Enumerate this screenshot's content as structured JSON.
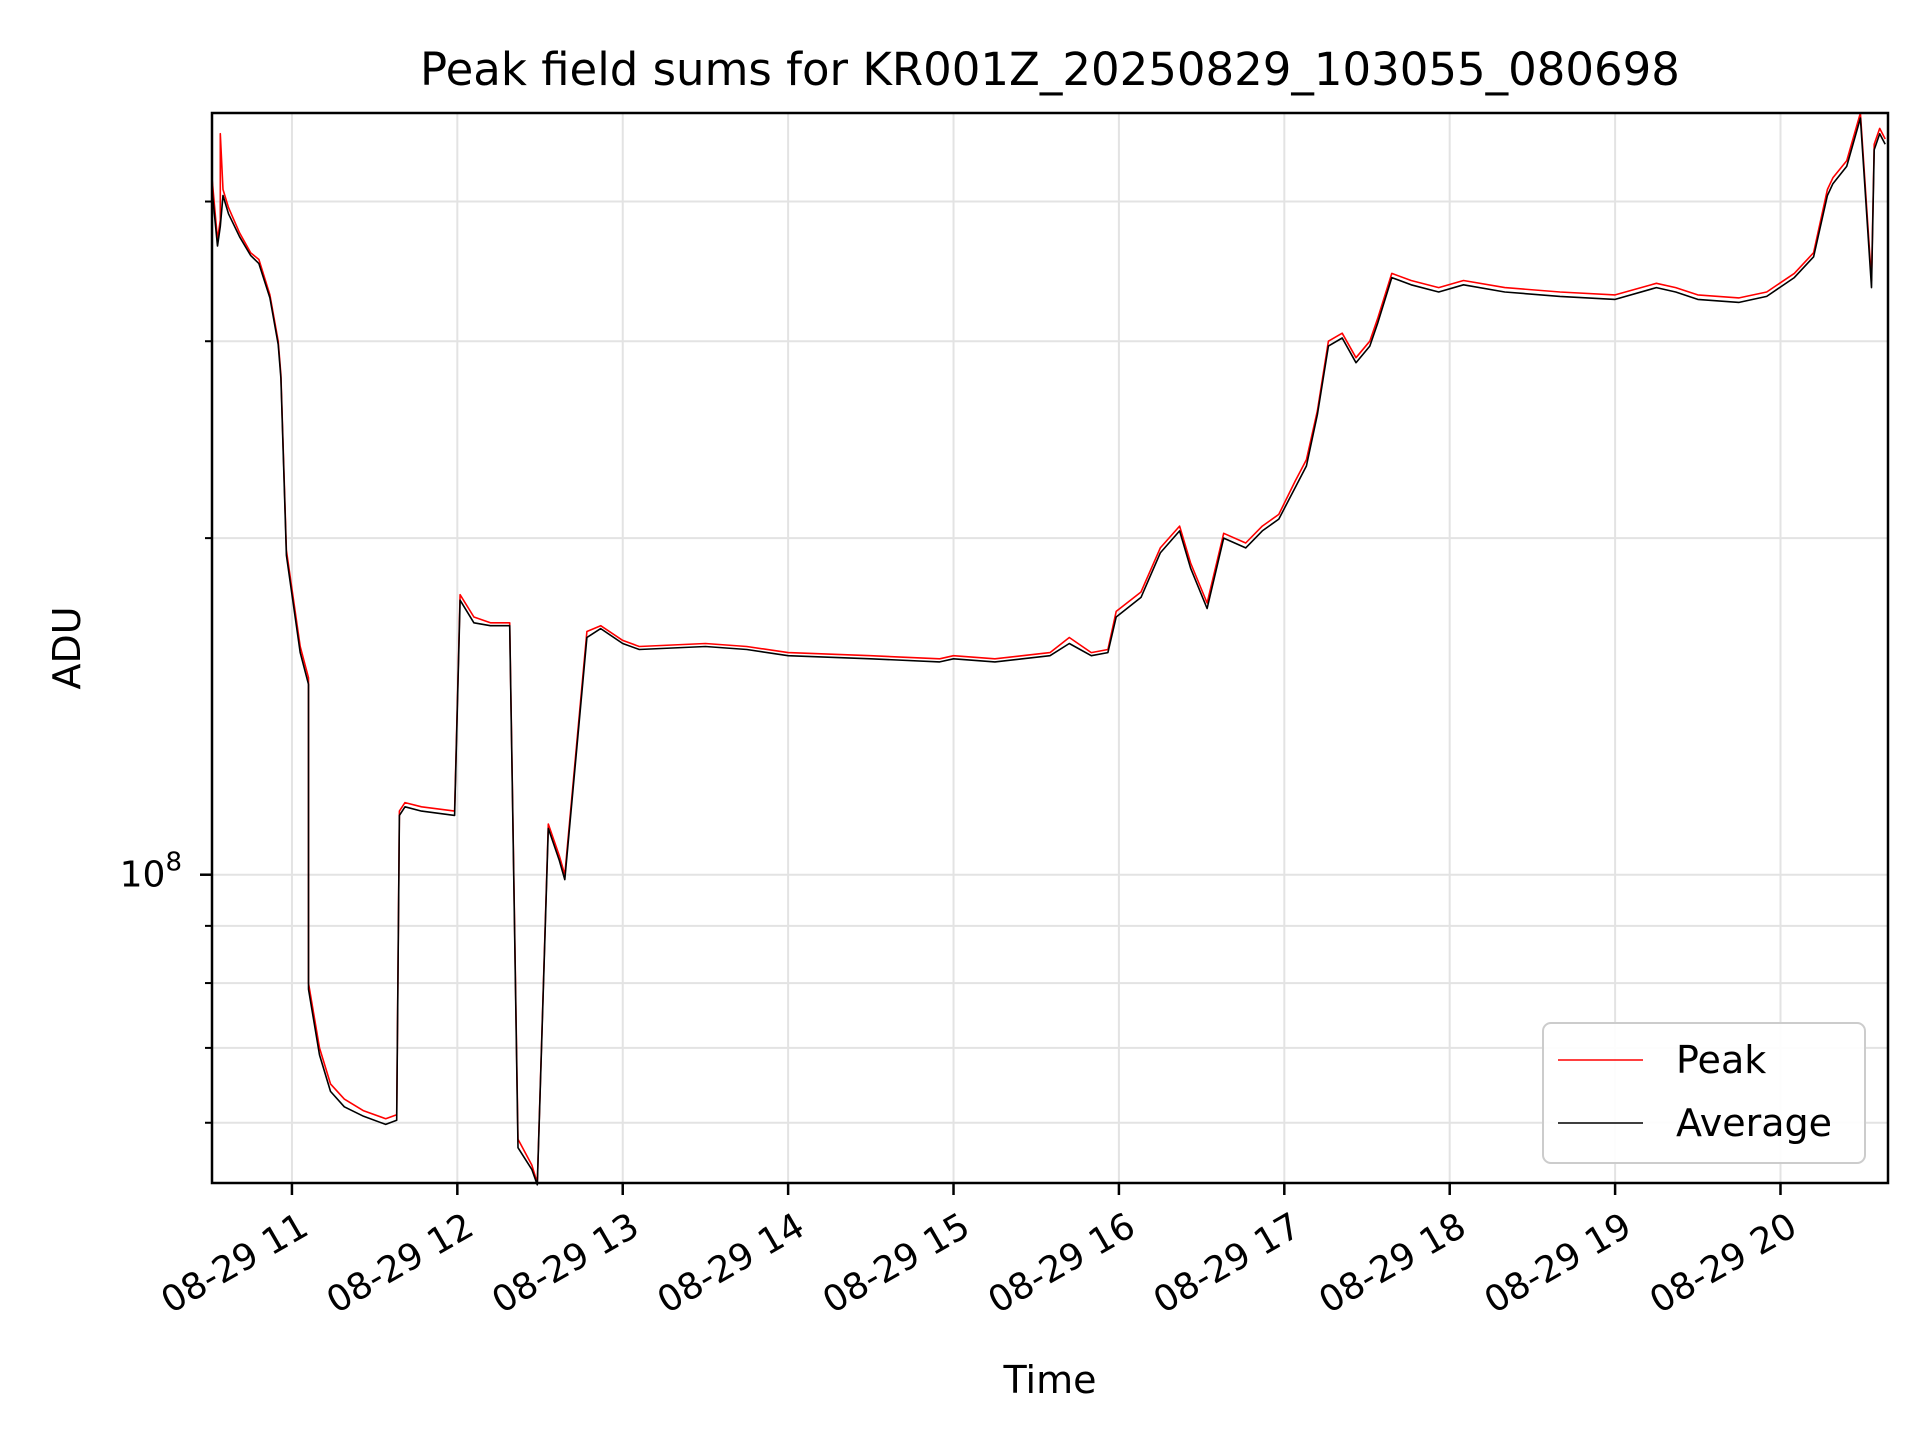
{
  "chart_data": {
    "type": "line",
    "title": "Peak field sums for KR001Z_20250829_103055_080698",
    "xlabel": "Time",
    "ylabel": "ADU",
    "yscale": "log",
    "xlim": [
      "2025-08-29 10:31",
      "2025-08-29 20:39"
    ],
    "ylim": [
      53000000,
      480000000
    ],
    "grid": true,
    "legend_position": "bottom-right",
    "x_ticks": [
      {
        "value": "2025-08-29 11:00",
        "label": "08-29 11"
      },
      {
        "value": "2025-08-29 12:00",
        "label": "08-29 12"
      },
      {
        "value": "2025-08-29 13:00",
        "label": "08-29 13"
      },
      {
        "value": "2025-08-29 14:00",
        "label": "08-29 14"
      },
      {
        "value": "2025-08-29 15:00",
        "label": "08-29 15"
      },
      {
        "value": "2025-08-29 16:00",
        "label": "08-29 16"
      },
      {
        "value": "2025-08-29 17:00",
        "label": "08-29 17"
      },
      {
        "value": "2025-08-29 18:00",
        "label": "08-29 18"
      },
      {
        "value": "2025-08-29 19:00",
        "label": "08-29 19"
      },
      {
        "value": "2025-08-29 20:00",
        "label": "08-29 20"
      }
    ],
    "y_major_ticks": [
      {
        "value": 100000000,
        "label_base": "10",
        "label_exp": "8"
      }
    ],
    "y_minor_ticks": [
      60000000,
      70000000,
      80000000,
      90000000,
      200000000,
      300000000,
      400000000
    ],
    "series": [
      {
        "name": "Peak",
        "color": "#ff0000",
        "x": [
          "2025-08-29 10:31",
          "2025-08-29 10:33",
          "2025-08-29 10:34",
          "2025-08-29 10:34",
          "2025-08-29 10:35",
          "2025-08-29 10:37",
          "2025-08-29 10:41",
          "2025-08-29 10:45",
          "2025-08-29 10:48",
          "2025-08-29 10:52",
          "2025-08-29 10:55",
          "2025-08-29 10:56",
          "2025-08-29 10:58",
          "2025-08-29 11:03",
          "2025-08-29 11:06",
          "2025-08-29 11:06",
          "2025-08-29 11:10",
          "2025-08-29 11:14",
          "2025-08-29 11:19",
          "2025-08-29 11:26",
          "2025-08-29 11:34",
          "2025-08-29 11:38",
          "2025-08-29 11:39",
          "2025-08-29 11:41",
          "2025-08-29 11:47",
          "2025-08-29 11:59",
          "2025-08-29 12:01",
          "2025-08-29 12:06",
          "2025-08-29 12:12",
          "2025-08-29 12:19",
          "2025-08-29 12:20",
          "2025-08-29 12:22",
          "2025-08-29 12:27",
          "2025-08-29 12:29",
          "2025-08-29 12:33",
          "2025-08-29 12:37",
          "2025-08-29 12:39",
          "2025-08-29 12:47",
          "2025-08-29 12:52",
          "2025-08-29 13:00",
          "2025-08-29 13:06",
          "2025-08-29 13:30",
          "2025-08-29 13:45",
          "2025-08-29 14:00",
          "2025-08-29 14:30",
          "2025-08-29 14:55",
          "2025-08-29 15:00",
          "2025-08-29 15:15",
          "2025-08-29 15:25",
          "2025-08-29 15:35",
          "2025-08-29 15:42",
          "2025-08-29 15:50",
          "2025-08-29 15:56",
          "2025-08-29 15:59",
          "2025-08-29 16:08",
          "2025-08-29 16:15",
          "2025-08-29 16:22",
          "2025-08-29 16:26",
          "2025-08-29 16:32",
          "2025-08-29 16:38",
          "2025-08-29 16:46",
          "2025-08-29 16:52",
          "2025-08-29 16:58",
          "2025-08-29 17:04",
          "2025-08-29 17:08",
          "2025-08-29 17:12",
          "2025-08-29 17:16",
          "2025-08-29 17:21",
          "2025-08-29 17:26",
          "2025-08-29 17:31",
          "2025-08-29 17:34",
          "2025-08-29 17:39",
          "2025-08-29 17:46",
          "2025-08-29 17:56",
          "2025-08-29 18:05",
          "2025-08-29 18:20",
          "2025-08-29 18:40",
          "2025-08-29 19:00",
          "2025-08-29 19:15",
          "2025-08-29 19:22",
          "2025-08-29 19:30",
          "2025-08-29 19:45",
          "2025-08-29 19:55",
          "2025-08-29 20:05",
          "2025-08-29 20:12",
          "2025-08-29 20:17",
          "2025-08-29 20:19",
          "2025-08-29 20:24",
          "2025-08-29 20:29",
          "2025-08-29 20:33",
          "2025-08-29 20:34",
          "2025-08-29 20:36",
          "2025-08-29 20:38"
        ],
        "y": [
          420000000,
          370000000,
          385000000,
          460000000,
          410000000,
          395000000,
          375000000,
          360000000,
          355000000,
          330000000,
          300000000,
          280000000,
          195000000,
          160000000,
          150000000,
          80000000,
          70000000,
          65000000,
          63000000,
          61500000,
          60500000,
          61000000,
          114000000,
          116000000,
          115000000,
          114000000,
          178000000,
          170000000,
          168000000,
          168000000,
          118000000,
          58000000,
          55000000,
          53000000,
          111000000,
          104000000,
          100000000,
          165000000,
          167000000,
          162000000,
          160000000,
          161000000,
          160000000,
          158000000,
          157000000,
          156000000,
          157000000,
          156000000,
          157000000,
          158000000,
          163000000,
          158000000,
          159000000,
          172000000,
          179000000,
          196000000,
          205000000,
          190000000,
          175000000,
          202000000,
          198000000,
          205000000,
          210000000,
          225000000,
          235000000,
          260000000,
          300000000,
          305000000,
          290000000,
          300000000,
          315000000,
          345000000,
          340000000,
          335000000,
          340000000,
          335000000,
          332000000,
          330000000,
          338000000,
          335000000,
          330000000,
          328000000,
          332000000,
          345000000,
          360000000,
          410000000,
          420000000,
          435000000,
          480000000,
          340000000,
          450000000,
          465000000,
          455000000
        ]
      },
      {
        "name": "Average",
        "color": "#000000",
        "x": [
          "2025-08-29 10:31",
          "2025-08-29 10:33",
          "2025-08-29 10:34",
          "2025-08-29 10:35",
          "2025-08-29 10:37",
          "2025-08-29 10:41",
          "2025-08-29 10:45",
          "2025-08-29 10:48",
          "2025-08-29 10:52",
          "2025-08-29 10:55",
          "2025-08-29 10:56",
          "2025-08-29 10:58",
          "2025-08-29 11:03",
          "2025-08-29 11:06",
          "2025-08-29 11:06",
          "2025-08-29 11:10",
          "2025-08-29 11:14",
          "2025-08-29 11:19",
          "2025-08-29 11:26",
          "2025-08-29 11:34",
          "2025-08-29 11:38",
          "2025-08-29 11:39",
          "2025-08-29 11:41",
          "2025-08-29 11:47",
          "2025-08-29 11:59",
          "2025-08-29 12:01",
          "2025-08-29 12:06",
          "2025-08-29 12:12",
          "2025-08-29 12:19",
          "2025-08-29 12:20",
          "2025-08-29 12:22",
          "2025-08-29 12:27",
          "2025-08-29 12:29",
          "2025-08-29 12:33",
          "2025-08-29 12:37",
          "2025-08-29 12:39",
          "2025-08-29 12:47",
          "2025-08-29 12:52",
          "2025-08-29 13:00",
          "2025-08-29 13:06",
          "2025-08-29 13:30",
          "2025-08-29 13:45",
          "2025-08-29 14:00",
          "2025-08-29 14:30",
          "2025-08-29 14:55",
          "2025-08-29 15:00",
          "2025-08-29 15:15",
          "2025-08-29 15:25",
          "2025-08-29 15:35",
          "2025-08-29 15:42",
          "2025-08-29 15:50",
          "2025-08-29 15:56",
          "2025-08-29 15:59",
          "2025-08-29 16:08",
          "2025-08-29 16:15",
          "2025-08-29 16:22",
          "2025-08-29 16:26",
          "2025-08-29 16:32",
          "2025-08-29 16:38",
          "2025-08-29 16:46",
          "2025-08-29 16:52",
          "2025-08-29 16:58",
          "2025-08-29 17:04",
          "2025-08-29 17:08",
          "2025-08-29 17:12",
          "2025-08-29 17:16",
          "2025-08-29 17:21",
          "2025-08-29 17:26",
          "2025-08-29 17:31",
          "2025-08-29 17:34",
          "2025-08-29 17:39",
          "2025-08-29 17:46",
          "2025-08-29 17:56",
          "2025-08-29 18:05",
          "2025-08-29 18:20",
          "2025-08-29 18:40",
          "2025-08-29 19:00",
          "2025-08-29 19:15",
          "2025-08-29 19:22",
          "2025-08-29 19:30",
          "2025-08-29 19:45",
          "2025-08-29 19:55",
          "2025-08-29 20:05",
          "2025-08-29 20:12",
          "2025-08-29 20:17",
          "2025-08-29 20:19",
          "2025-08-29 20:24",
          "2025-08-29 20:29",
          "2025-08-29 20:33",
          "2025-08-29 20:34",
          "2025-08-29 20:36",
          "2025-08-29 20:38"
        ],
        "y": [
          410000000,
          365000000,
          380000000,
          405000000,
          390000000,
          372000000,
          358000000,
          352000000,
          328000000,
          298000000,
          278000000,
          193000000,
          158000000,
          148000000,
          79000000,
          69000000,
          64000000,
          62000000,
          60800000,
          59800000,
          60300000,
          113000000,
          115000000,
          114000000,
          113000000,
          176000000,
          168000000,
          167000000,
          167000000,
          117000000,
          57000000,
          54500000,
          52800000,
          110000000,
          103000000,
          99000000,
          163000000,
          166000000,
          161000000,
          159000000,
          160000000,
          159000000,
          157000000,
          156000000,
          155000000,
          156000000,
          155000000,
          156000000,
          157000000,
          161000000,
          157000000,
          158000000,
          170000000,
          177000000,
          194000000,
          203000000,
          188000000,
          173000000,
          200000000,
          196000000,
          203000000,
          208000000,
          222000000,
          232000000,
          258000000,
          297000000,
          302000000,
          287000000,
          297000000,
          312000000,
          342000000,
          337000000,
          332000000,
          337000000,
          332000000,
          329000000,
          327000000,
          335000000,
          332000000,
          327000000,
          325000000,
          329000000,
          342000000,
          357000000,
          405000000,
          415000000,
          430000000,
          475000000,
          335000000,
          445000000,
          460000000,
          450000000
        ]
      }
    ]
  }
}
